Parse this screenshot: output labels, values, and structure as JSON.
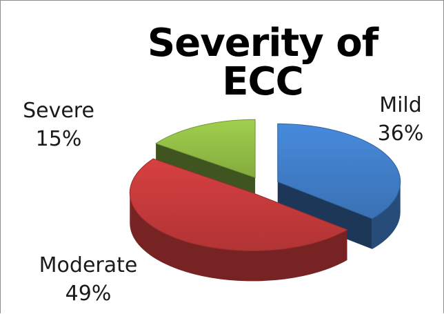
{
  "chart_data": {
    "type": "pie",
    "title": "Severity of ECC",
    "slices": [
      {
        "name": "Mild",
        "value": 36,
        "label": "36%",
        "color": "#3f7bc4"
      },
      {
        "name": "Moderate",
        "value": 49,
        "label": "49%",
        "color": "#c0393a"
      },
      {
        "name": "Severe",
        "value": 15,
        "label": "15%",
        "color": "#8fba45"
      }
    ],
    "style": "3d-exploded",
    "legend": "none"
  }
}
